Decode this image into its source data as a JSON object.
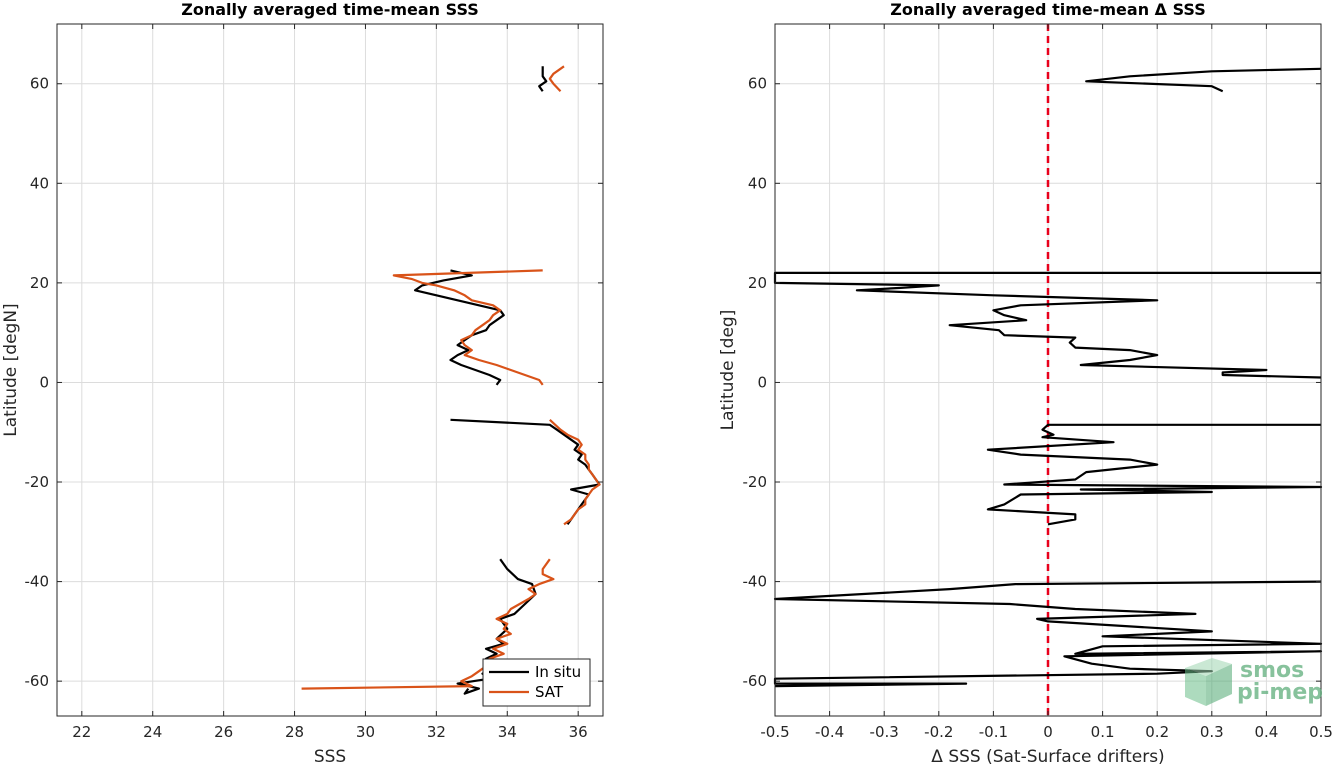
{
  "chart_data": [
    {
      "type": "line",
      "title": "Zonally averaged time-mean SSS",
      "xlabel": "SSS",
      "ylabel": "Latitude [degN]",
      "xlim": [
        21.3,
        36.7
      ],
      "ylim": [
        -67,
        72
      ],
      "xticks": [
        22,
        24,
        26,
        28,
        30,
        32,
        34,
        36
      ],
      "yticks": [
        -60,
        -40,
        -20,
        0,
        20,
        40,
        60
      ],
      "grid": true,
      "legend": {
        "position": "bottom-right",
        "entries": [
          "In situ",
          "SAT"
        ]
      },
      "series": [
        {
          "name": "In situ",
          "color": "#000000",
          "segments": [
            [
              [
                35.0,
                63.5
              ],
              [
                35.0,
                61.5
              ],
              [
                35.1,
                60.5
              ],
              [
                34.9,
                59.5
              ],
              [
                35.0,
                58.5
              ]
            ],
            [
              [
                32.4,
                22.5
              ],
              [
                33.0,
                21.5
              ],
              [
                32.2,
                20.5
              ],
              [
                31.6,
                19.5
              ],
              [
                31.4,
                18.5
              ],
              [
                32.0,
                17.5
              ],
              [
                32.6,
                16.5
              ],
              [
                33.2,
                15.5
              ],
              [
                33.8,
                14.5
              ],
              [
                33.9,
                13.5
              ],
              [
                33.7,
                12.5
              ],
              [
                33.5,
                11.5
              ],
              [
                33.4,
                10.5
              ],
              [
                33.0,
                9.5
              ],
              [
                32.8,
                8.5
              ],
              [
                32.6,
                7.5
              ],
              [
                32.9,
                6.5
              ],
              [
                32.6,
                5.5
              ],
              [
                32.4,
                4.5
              ],
              [
                32.7,
                3.5
              ],
              [
                33.1,
                2.5
              ],
              [
                33.5,
                1.5
              ],
              [
                33.8,
                0.5
              ],
              [
                33.7,
                -0.5
              ]
            ],
            [
              [
                32.4,
                -7.5
              ],
              [
                35.2,
                -8.5
              ],
              [
                35.4,
                -9.5
              ],
              [
                35.6,
                -10.5
              ],
              [
                35.8,
                -11.5
              ],
              [
                36.0,
                -12.5
              ],
              [
                35.9,
                -13.5
              ],
              [
                36.1,
                -14.5
              ],
              [
                36.0,
                -15.5
              ],
              [
                36.2,
                -16.5
              ],
              [
                36.3,
                -17.5
              ],
              [
                36.4,
                -18.5
              ],
              [
                36.5,
                -19.5
              ],
              [
                36.6,
                -20.5
              ],
              [
                35.8,
                -21.5
              ],
              [
                36.3,
                -22.5
              ],
              [
                36.2,
                -23.5
              ],
              [
                36.1,
                -24.5
              ],
              [
                36.0,
                -25.5
              ],
              [
                35.9,
                -26.5
              ],
              [
                35.8,
                -27.5
              ],
              [
                35.7,
                -28.5
              ]
            ],
            [
              [
                33.8,
                -35.5
              ],
              [
                34.0,
                -37.5
              ],
              [
                34.3,
                -39.5
              ],
              [
                34.7,
                -40.5
              ],
              [
                34.8,
                -42.5
              ],
              [
                34.5,
                -44.5
              ],
              [
                34.2,
                -46.5
              ],
              [
                33.8,
                -47.5
              ],
              [
                34.0,
                -49.5
              ],
              [
                33.7,
                -51.5
              ],
              [
                33.9,
                -52.5
              ],
              [
                33.4,
                -53.5
              ],
              [
                33.7,
                -54.5
              ],
              [
                33.4,
                -55.5
              ],
              [
                33.7,
                -56.5
              ],
              [
                33.5,
                -57.5
              ],
              [
                33.3,
                -58.5
              ],
              [
                33.5,
                -59.5
              ],
              [
                32.6,
                -60.5
              ],
              [
                33.2,
                -61.5
              ],
              [
                32.8,
                -62.5
              ],
              [
                32.9,
                -61.5
              ]
            ]
          ]
        },
        {
          "name": "SAT",
          "color": "#d95319",
          "segments": [
            [
              [
                35.6,
                63.5
              ],
              [
                35.3,
                62.0
              ],
              [
                35.2,
                61.0
              ],
              [
                35.3,
                60.0
              ],
              [
                35.5,
                58.5
              ]
            ],
            [
              [
                35.0,
                22.5
              ],
              [
                30.8,
                21.5
              ],
              [
                31.3,
                20.8
              ],
              [
                31.6,
                20.0
              ],
              [
                32.0,
                19.5
              ],
              [
                32.5,
                18.5
              ],
              [
                32.8,
                17.5
              ],
              [
                33.0,
                16.5
              ],
              [
                33.6,
                15.5
              ],
              [
                33.8,
                14.5
              ],
              [
                33.6,
                13.5
              ],
              [
                33.5,
                12.5
              ],
              [
                33.3,
                11.5
              ],
              [
                33.1,
                10.5
              ],
              [
                33.0,
                9.5
              ],
              [
                32.7,
                8.5
              ],
              [
                32.8,
                7.5
              ],
              [
                33.0,
                6.5
              ],
              [
                32.8,
                5.5
              ],
              [
                33.2,
                4.5
              ],
              [
                33.7,
                3.5
              ],
              [
                34.1,
                2.5
              ],
              [
                34.5,
                1.5
              ],
              [
                34.9,
                0.5
              ],
              [
                35.0,
                -0.5
              ]
            ],
            [
              [
                35.2,
                -7.5
              ],
              [
                35.5,
                -9.5
              ],
              [
                35.7,
                -10.5
              ],
              [
                36.0,
                -11.5
              ],
              [
                36.1,
                -12.5
              ],
              [
                36.0,
                -13.5
              ],
              [
                36.2,
                -14.5
              ],
              [
                36.2,
                -15.5
              ],
              [
                36.3,
                -16.5
              ],
              [
                36.3,
                -17.5
              ],
              [
                36.4,
                -18.5
              ],
              [
                36.5,
                -19.5
              ],
              [
                36.6,
                -20.5
              ],
              [
                36.4,
                -21.5
              ],
              [
                36.3,
                -22.5
              ],
              [
                36.2,
                -23.5
              ],
              [
                36.2,
                -24.5
              ],
              [
                36.0,
                -25.5
              ],
              [
                35.9,
                -26.5
              ],
              [
                35.8,
                -27.5
              ],
              [
                35.6,
                -28.5
              ]
            ],
            [
              [
                35.2,
                -35.5
              ],
              [
                35.0,
                -37.5
              ],
              [
                35.0,
                -38.5
              ],
              [
                35.3,
                -39.5
              ],
              [
                34.9,
                -40.5
              ],
              [
                34.6,
                -41.5
              ],
              [
                34.8,
                -42.5
              ],
              [
                34.6,
                -43.5
              ],
              [
                34.1,
                -45.5
              ],
              [
                34.0,
                -46.5
              ],
              [
                33.7,
                -47.5
              ],
              [
                34.0,
                -48.5
              ],
              [
                33.9,
                -49.5
              ],
              [
                34.1,
                -50.5
              ],
              [
                33.7,
                -51.5
              ],
              [
                34.0,
                -52.5
              ],
              [
                33.6,
                -53.5
              ],
              [
                33.9,
                -54.5
              ],
              [
                33.5,
                -55.5
              ],
              [
                33.7,
                -56.5
              ],
              [
                33.3,
                -57.5
              ],
              [
                33.1,
                -58.5
              ],
              [
                33.0,
                -59.0
              ],
              [
                32.7,
                -60.0
              ],
              [
                33.0,
                -61.0
              ],
              [
                28.2,
                -61.5
              ]
            ]
          ]
        }
      ]
    },
    {
      "type": "line",
      "title": "Zonally averaged time-mean Δ SSS",
      "xlabel": "Δ SSS (Sat-Surface drifters)",
      "ylabel": "Latitude [deg]",
      "xlim": [
        -0.5,
        0.5
      ],
      "ylim": [
        -67,
        72
      ],
      "xticks": [
        -0.5,
        -0.4,
        -0.3,
        -0.2,
        -0.1,
        0,
        0.1,
        0.2,
        0.3,
        0.4,
        0.5
      ],
      "yticks": [
        -60,
        -40,
        -20,
        0,
        20,
        40,
        60
      ],
      "grid": true,
      "reference_line": {
        "x": 0,
        "color": "#e8001c",
        "style": "dashed"
      },
      "series": [
        {
          "name": "",
          "color": "#000000",
          "segments": [
            [
              [
                0.5,
                63.0
              ],
              [
                0.3,
                62.5
              ],
              [
                0.15,
                61.5
              ],
              [
                0.07,
                60.5
              ],
              [
                0.3,
                59.5
              ],
              [
                0.32,
                58.5
              ]
            ],
            [
              [
                0.5,
                22.0
              ],
              [
                -0.5,
                22.0
              ],
              [
                -0.5,
                20.0
              ],
              [
                -0.2,
                19.5
              ],
              [
                -0.27,
                19.0
              ],
              [
                -0.35,
                18.5
              ],
              [
                -0.1,
                17.5
              ],
              [
                0.2,
                16.5
              ],
              [
                -0.05,
                15.5
              ],
              [
                -0.1,
                14.5
              ],
              [
                -0.08,
                13.5
              ],
              [
                -0.04,
                12.5
              ],
              [
                -0.18,
                11.5
              ],
              [
                -0.09,
                10.5
              ],
              [
                -0.08,
                9.5
              ],
              [
                0.05,
                9.0
              ],
              [
                0.04,
                8.0
              ],
              [
                0.05,
                7.0
              ],
              [
                0.15,
                6.5
              ],
              [
                0.2,
                5.5
              ],
              [
                0.15,
                4.5
              ],
              [
                0.06,
                3.5
              ],
              [
                0.4,
                2.5
              ],
              [
                0.32,
                2.0
              ],
              [
                0.32,
                1.5
              ],
              [
                0.5,
                1.0
              ]
            ],
            [
              [
                0.5,
                -8.5
              ],
              [
                0.0,
                -8.5
              ],
              [
                -0.01,
                -9.5
              ],
              [
                0.01,
                -10.5
              ],
              [
                -0.01,
                -11.0
              ],
              [
                0.12,
                -12.0
              ],
              [
                -0.11,
                -13.5
              ],
              [
                -0.05,
                -14.5
              ],
              [
                0.15,
                -15.5
              ],
              [
                0.2,
                -16.5
              ],
              [
                0.07,
                -18.0
              ],
              [
                0.05,
                -19.5
              ],
              [
                -0.08,
                -20.5
              ],
              [
                0.5,
                -21.0
              ],
              [
                0.06,
                -21.5
              ],
              [
                0.3,
                -22.0
              ],
              [
                -0.05,
                -22.5
              ],
              [
                -0.08,
                -24.5
              ],
              [
                -0.11,
                -25.5
              ],
              [
                0.05,
                -26.5
              ],
              [
                0.05,
                -27.5
              ],
              [
                0.0,
                -28.5
              ]
            ],
            [
              [
                0.5,
                -40.0
              ],
              [
                -0.06,
                -40.5
              ],
              [
                -0.18,
                -41.5
              ],
              [
                -0.5,
                -43.5
              ],
              [
                -0.07,
                -44.5
              ],
              [
                0.05,
                -45.5
              ],
              [
                0.27,
                -46.5
              ],
              [
                -0.02,
                -47.5
              ],
              [
                0.0,
                -48.0
              ],
              [
                0.3,
                -50.0
              ],
              [
                0.1,
                -51.0
              ],
              [
                0.5,
                -52.5
              ],
              [
                0.1,
                -53.0
              ],
              [
                0.05,
                -54.5
              ],
              [
                0.5,
                -54.0
              ],
              [
                0.03,
                -55.0
              ],
              [
                0.08,
                -56.5
              ],
              [
                0.15,
                -57.5
              ],
              [
                0.3,
                -58.0
              ],
              [
                0.2,
                -58.5
              ],
              [
                -0.5,
                -59.5
              ],
              [
                -0.5,
                -60.5
              ],
              [
                -0.15,
                -60.5
              ],
              [
                -0.5,
                -61.0
              ]
            ]
          ]
        }
      ]
    }
  ],
  "logo": {
    "line1": "smos",
    "line2": "pi-mep",
    "color": "#5fae7c"
  }
}
